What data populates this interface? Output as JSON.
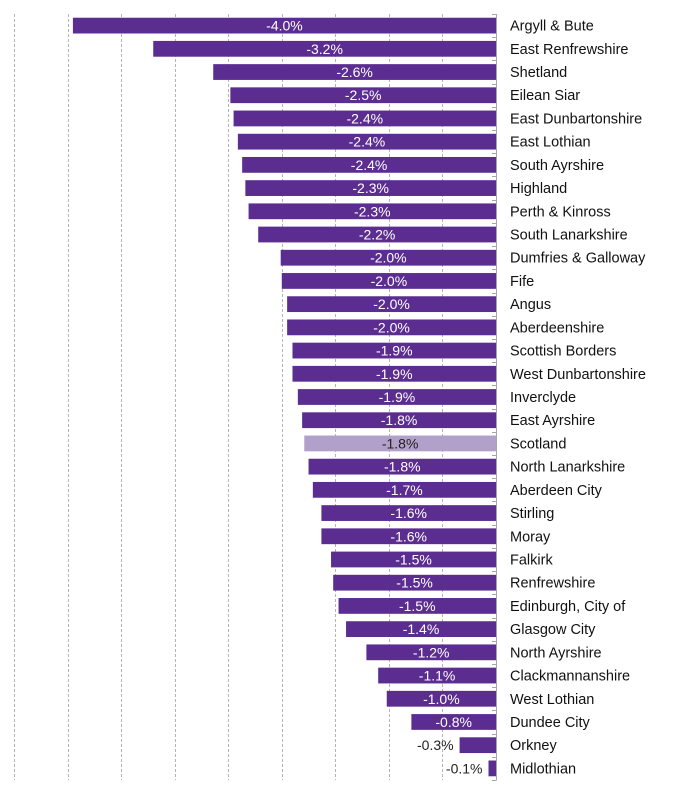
{
  "chart_data": {
    "type": "bar",
    "orientation": "horizontal",
    "title": "",
    "xlabel": "",
    "ylabel": "",
    "xlim": [
      -4.5,
      0
    ],
    "grid": true,
    "gridline_step": 0.5,
    "legend": "none",
    "colors": {
      "bar": "#5c2d91",
      "highlight": "#b1a0c9",
      "label_on_bar": "#ffffff",
      "label_highlight": "#222222",
      "label_outside": "#222222",
      "gridline": "#b4b4b4",
      "axis": "#a6a6a6"
    },
    "highlight_category": "Scotland",
    "categories": [
      "Argyll & Bute",
      "East Renfrewshire",
      "Shetland",
      "Eilean Siar",
      "East Dunbartonshire",
      "East Lothian",
      "South Ayrshire",
      "Highland",
      "Perth & Kinross",
      "South Lanarkshire",
      "Dumfries & Galloway",
      "Fife",
      "Angus",
      "Aberdeenshire",
      "Scottish Borders",
      "West Dunbartonshire",
      "Inverclyde",
      "East Ayrshire",
      "Scotland",
      "North Lanarkshire",
      "Aberdeen City",
      "Stirling",
      "Moray",
      "Falkirk",
      "Renfrewshire",
      "Edinburgh, City of",
      "Glasgow City",
      "North Ayrshire",
      "Clackmannanshire",
      "West Lothian",
      "Dundee City",
      "Orkney",
      "Midlothian"
    ],
    "values": [
      -3.95,
      -3.2,
      -2.64,
      -2.48,
      -2.45,
      -2.41,
      -2.37,
      -2.34,
      -2.31,
      -2.22,
      -2.01,
      -2.0,
      -1.95,
      -1.95,
      -1.9,
      -1.9,
      -1.85,
      -1.81,
      -1.79,
      -1.75,
      -1.71,
      -1.63,
      -1.63,
      -1.54,
      -1.52,
      -1.47,
      -1.4,
      -1.21,
      -1.1,
      -1.02,
      -0.79,
      -0.34,
      -0.07
    ],
    "data_labels": [
      "-4.0%",
      "-3.2%",
      "-2.6%",
      "-2.5%",
      "-2.4%",
      "-2.4%",
      "-2.4%",
      "-2.3%",
      "-2.3%",
      "-2.2%",
      "-2.0%",
      "-2.0%",
      "-2.0%",
      "-2.0%",
      "-1.9%",
      "-1.9%",
      "-1.9%",
      "-1.8%",
      "-1.8%",
      "-1.8%",
      "-1.7%",
      "-1.6%",
      "-1.6%",
      "-1.5%",
      "-1.5%",
      "-1.5%",
      "-1.4%",
      "-1.2%",
      "-1.1%",
      "-1.0%",
      "-0.8%",
      "-0.3%",
      "-0.1%"
    ]
  }
}
